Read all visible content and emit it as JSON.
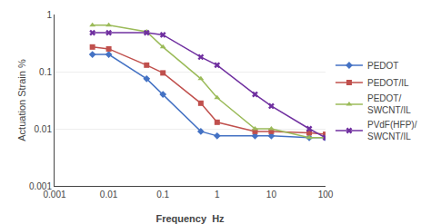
{
  "chart_data": {
    "type": "line",
    "xlabel": "Frequency  Hz",
    "ylabel": "Actuation Strain %",
    "log": true,
    "x": [
      0.005,
      0.01,
      0.05,
      0.1,
      0.5,
      1,
      5,
      10,
      50,
      100
    ],
    "series": [
      {
        "name": "PEDOT",
        "color": "#4472C4",
        "marker": "diamond",
        "values": [
          0.2,
          0.2,
          0.075,
          0.04,
          0.009,
          0.0075,
          0.0075,
          0.0075,
          0.007,
          0.007
        ]
      },
      {
        "name": "PEDOT/IL",
        "color": "#C0504D",
        "marker": "square",
        "values": [
          0.27,
          0.25,
          0.13,
          0.095,
          0.028,
          0.013,
          0.009,
          0.009,
          0.0085,
          0.008
        ]
      },
      {
        "name": "PEDOT/\nSWCNT/IL",
        "color": "#9BBB59",
        "marker": "triangle-up",
        "values": [
          0.65,
          0.65,
          0.5,
          0.27,
          0.075,
          0.035,
          0.01,
          0.01,
          0.007,
          0.007
        ]
      },
      {
        "name": "PVdF(HFP)/\nSWCNT/IL",
        "color": "#7030A0",
        "marker": "x",
        "values": [
          0.48,
          0.48,
          0.48,
          0.44,
          0.18,
          0.13,
          0.04,
          0.025,
          0.01,
          0.007
        ]
      }
    ],
    "xlim": [
      0.001,
      100
    ],
    "ylim": [
      0.001,
      1
    ],
    "xticks": [
      0.001,
      0.01,
      0.1,
      1,
      10,
      100
    ],
    "yticks": [
      0.001,
      0.01,
      0.1,
      1
    ],
    "grid": "y",
    "legend": "right"
  }
}
